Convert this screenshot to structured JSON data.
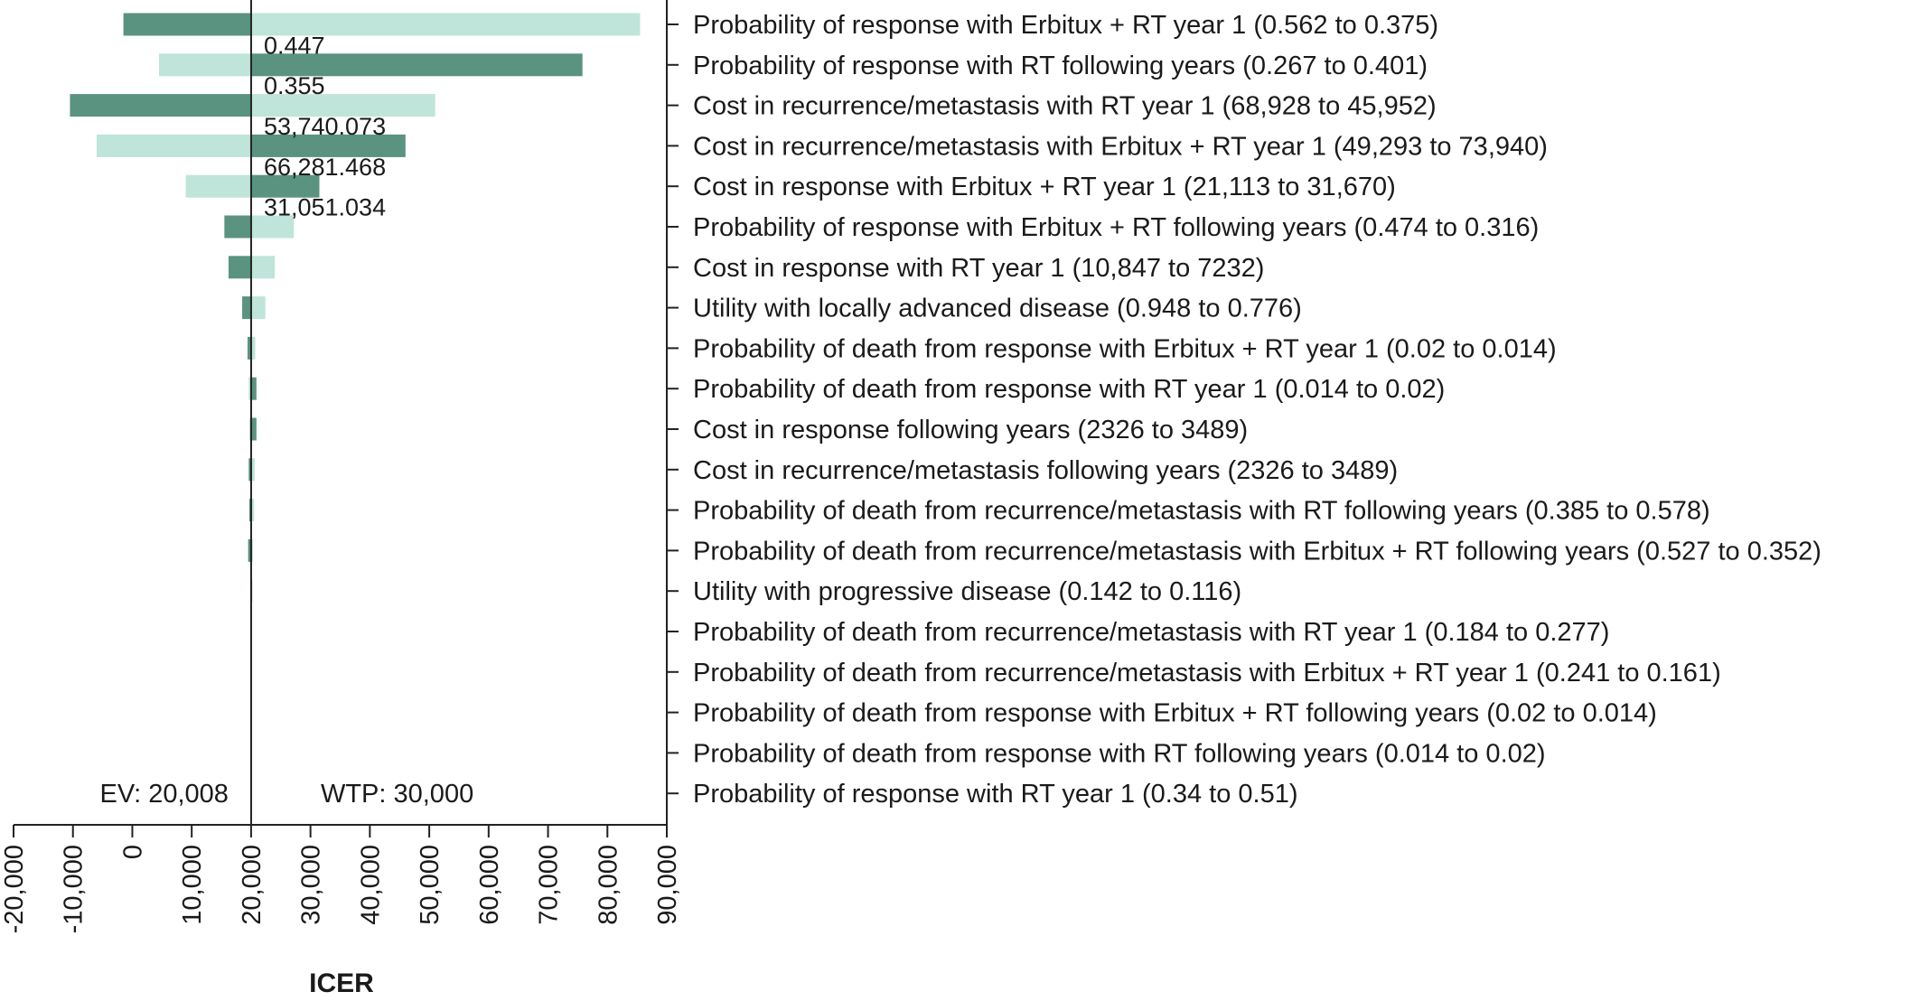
{
  "chart_data": {
    "type": "bar",
    "title": "",
    "xlabel": "ICER",
    "ylabel": "",
    "xlim": [
      -20000,
      90000
    ],
    "x_ticks": [
      "-20,000",
      "-10,000",
      "0",
      "10,000",
      "20,000",
      "30,000",
      "40,000",
      "50,000",
      "60,000",
      "70,000",
      "80,000",
      "90,000"
    ],
    "tick_values": [
      -20000,
      -10000,
      0,
      10000,
      20000,
      30000,
      40000,
      50000,
      60000,
      70000,
      80000,
      90000
    ],
    "baseline": 20008,
    "reference_lines": [
      {
        "label": "EV: 20,008",
        "value": 20008
      },
      {
        "label": "WTP: 30,000",
        "value": 30000
      }
    ],
    "colors": {
      "low": "#5a9380",
      "high": "#bfe4da",
      "axis": "#222222"
    },
    "categories": [
      "Probability of response with Erbitux + RT year 1 (0.562 to 0.375)",
      "Probability of response with RT following years (0.267 to 0.401)",
      "Cost in recurrence/metastasis with RT year 1 (68,928 to 45,952)",
      "Cost in recurrence/metastasis with Erbitux + RT year 1 (49,293 to 73,940)",
      "Cost in response with Erbitux + RT year 1 (21,113 to 31,670)",
      "Probability of response with Erbitux + RT following years (0.474 to 0.316)",
      "Cost in response with RT year 1 (10,847 to 7232)",
      "Utility with locally advanced disease (0.948 to 0.776)",
      "Probability of death from response with Erbitux + RT year 1 (0.02 to 0.014)",
      "Probability of death from response with RT year 1 (0.014 to 0.02)",
      "Cost in response following years (2326 to 3489)",
      "Cost in recurrence/metastasis following years (2326 to 3489)",
      "Probability of death from recurrence/metastasis with RT following years (0.385 to 0.578)",
      "Probability of death from recurrence/metastasis with Erbitux + RT following years (0.527 to 0.352)",
      "Utility with progressive disease (0.142 to 0.116)",
      "Probability of death from recurrence/metastasis with RT year 1 (0.184 to 0.277)",
      "Probability of death from recurrence/metastasis with Erbitux + RT year 1 (0.241 to 0.161)",
      "Probability of death from response with Erbitux + RT following years (0.02 to 0.014)",
      "Probability of death from response with RT following years (0.014 to 0.02)",
      "Probability of response with RT year 1 (0.34 to 0.51)"
    ],
    "series": [
      {
        "values": [
          -1500,
          75800,
          -10500,
          46000,
          31500,
          15500,
          16200,
          18500,
          19400,
          20900,
          20900,
          19600,
          19700,
          19500,
          19900,
          20008,
          20008,
          20008,
          20008,
          20008
        ]
      },
      {
        "values": [
          85500,
          4500,
          51000,
          -6000,
          9000,
          27200,
          24000,
          22400,
          20700,
          19600,
          19700,
          20600,
          20500,
          20300,
          20100,
          20008,
          20008,
          20008,
          20008,
          20008
        ]
      }
    ],
    "annotations": [
      {
        "text": "0.447",
        "after_index": 0
      },
      {
        "text": "0.355",
        "after_index": 1
      },
      {
        "text": "53,740.073",
        "after_index": 2
      },
      {
        "text": "66,281.468",
        "after_index": 3
      },
      {
        "text": "31,051.034",
        "after_index": 4
      }
    ]
  }
}
